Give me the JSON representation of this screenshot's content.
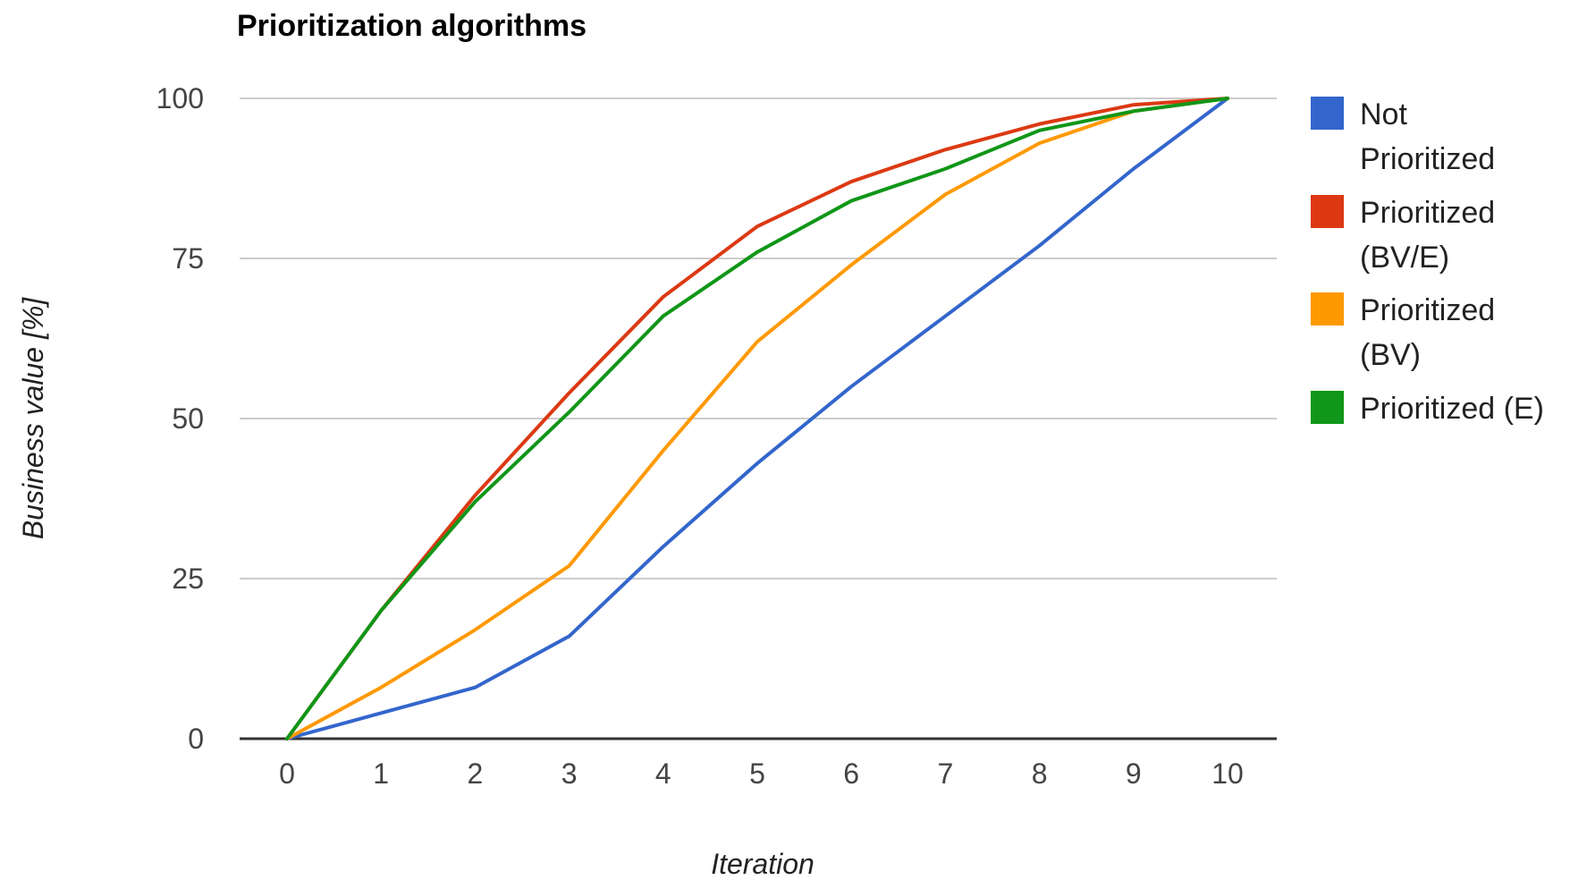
{
  "chart_data": {
    "type": "line",
    "title": "Prioritization algorithms",
    "xlabel": "Iteration",
    "ylabel": "Business value [%]",
    "x": [
      0,
      1,
      2,
      3,
      4,
      5,
      6,
      7,
      8,
      9,
      10
    ],
    "x_tick_labels": [
      "0",
      "1",
      "2",
      "3",
      "4",
      "5",
      "6",
      "7",
      "8",
      "9",
      "10"
    ],
    "y_ticks": [
      0,
      25,
      50,
      75,
      100
    ],
    "y_tick_labels": [
      "0",
      "25",
      "50",
      "75",
      "100"
    ],
    "ylim": [
      0,
      100
    ],
    "grid": true,
    "legend_position": "right",
    "series": [
      {
        "name": "Not Prioritized",
        "name_lines": [
          "Not",
          "Prioritized"
        ],
        "color": "#3366cc",
        "values": [
          0,
          4,
          8,
          16,
          30,
          43,
          55,
          66,
          77,
          89,
          100
        ]
      },
      {
        "name": "Prioritized (BV/E)",
        "name_lines": [
          "Prioritized",
          "(BV/E)"
        ],
        "color": "#dc3912",
        "values": [
          0,
          20,
          38,
          54,
          69,
          80,
          87,
          92,
          96,
          99,
          100
        ]
      },
      {
        "name": "Prioritized (BV)",
        "name_lines": [
          "Prioritized",
          "(BV)"
        ],
        "color": "#ff9900",
        "values": [
          0,
          8,
          17,
          27,
          45,
          62,
          74,
          85,
          93,
          98,
          100
        ]
      },
      {
        "name": "Prioritized (E)",
        "name_lines": [
          "Prioritized (E)"
        ],
        "color": "#109618",
        "values": [
          0,
          20,
          37,
          51,
          66,
          76,
          84,
          89,
          95,
          98,
          100
        ]
      }
    ]
  }
}
